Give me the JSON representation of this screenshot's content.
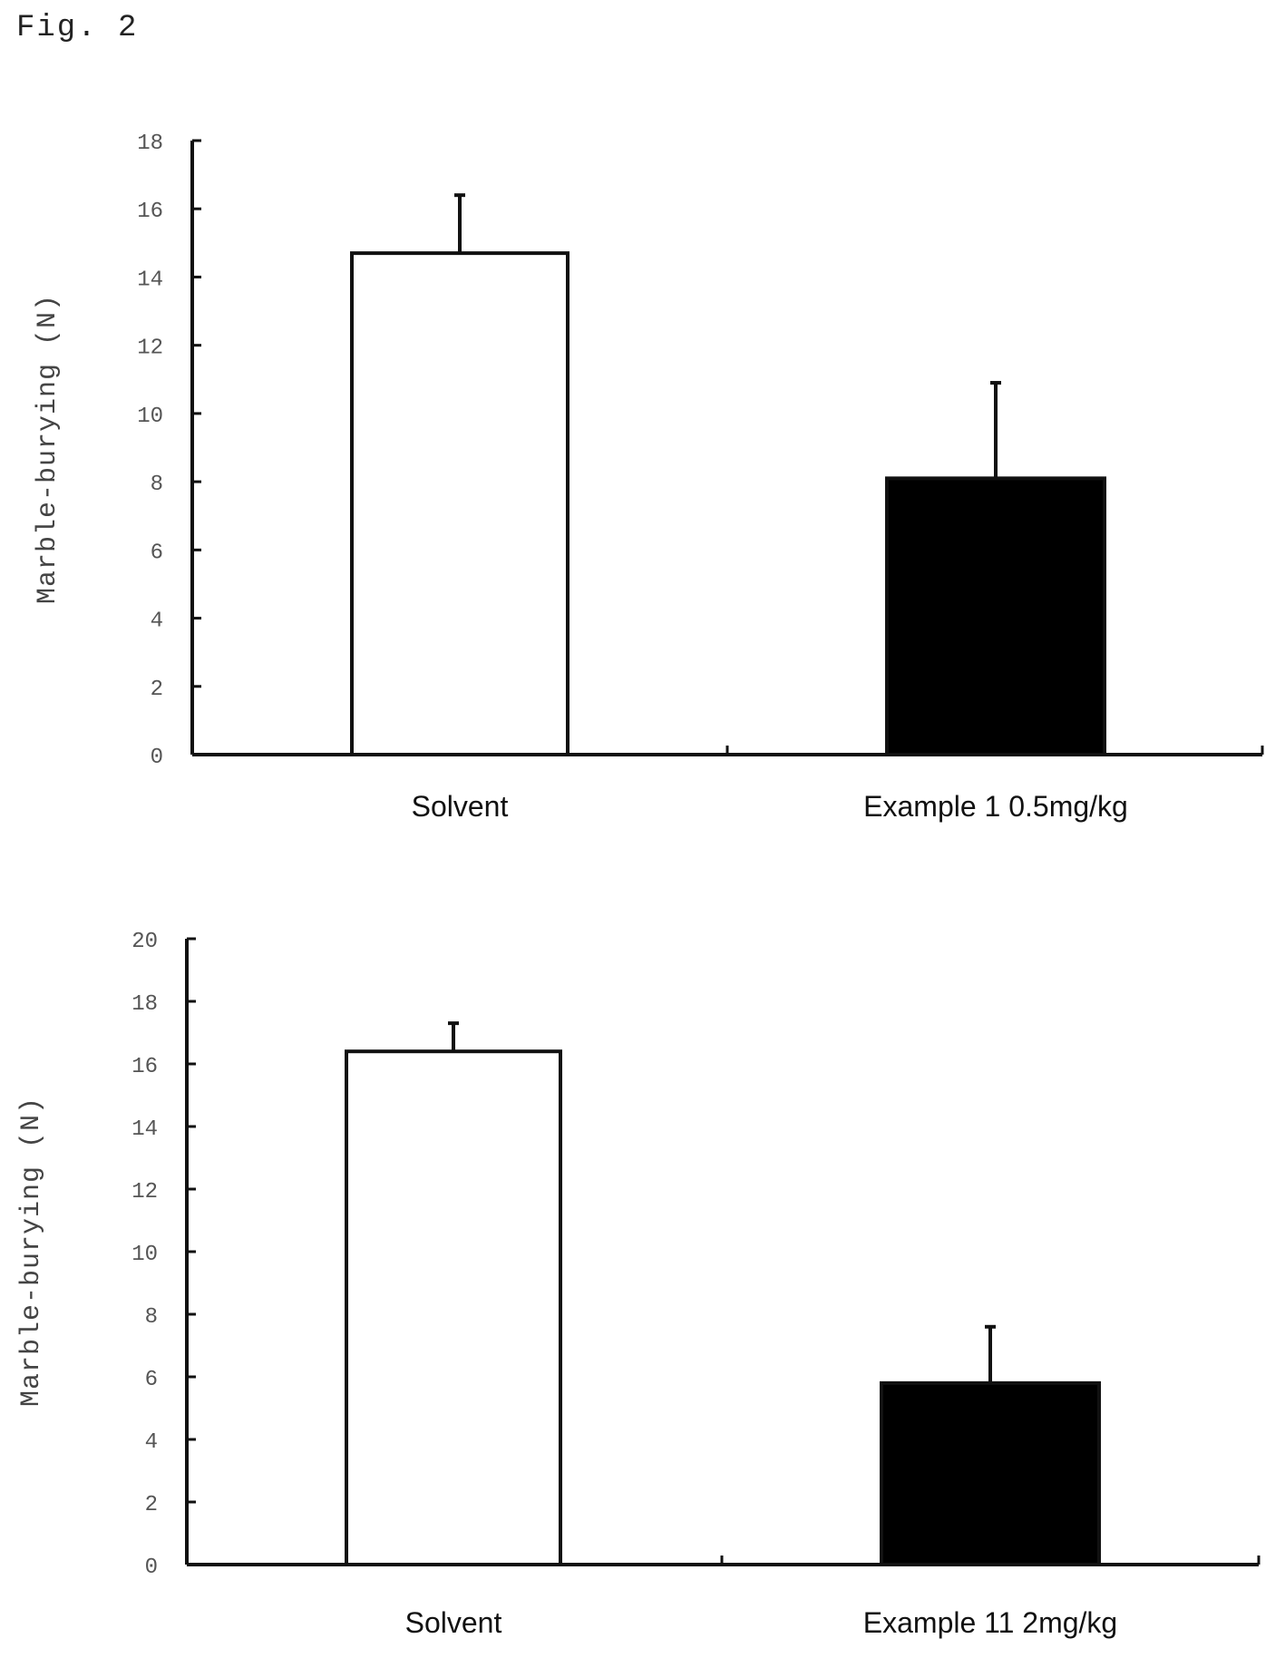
{
  "figure_title": "Fig. 2",
  "colors": {
    "axis": "#111111",
    "bar_outline": "#111111",
    "solvent_fill": "#ffffff",
    "example_fill": "#000000"
  },
  "chart_data": [
    {
      "type": "bar",
      "title": "",
      "xlabel": "",
      "ylabel": "Marble-burying (N)",
      "ylim": [
        0,
        18
      ],
      "yticks": [
        0,
        2,
        4,
        6,
        8,
        10,
        12,
        14,
        16,
        18
      ],
      "categories": [
        "Solvent",
        "Example 1  0.5mg/kg"
      ],
      "values": [
        14.7,
        8.1
      ],
      "error_upper": [
        1.7,
        2.8
      ],
      "fills": [
        "#ffffff",
        "#000000"
      ],
      "grid": false,
      "legend": "none"
    },
    {
      "type": "bar",
      "title": "",
      "xlabel": "",
      "ylabel": "Marble-burying (N)",
      "ylim": [
        0,
        20
      ],
      "yticks": [
        0,
        2,
        4,
        6,
        8,
        10,
        12,
        14,
        16,
        18,
        20
      ],
      "categories": [
        "Solvent",
        "Example 11  2mg/kg"
      ],
      "values": [
        16.4,
        5.8
      ],
      "error_upper": [
        0.9,
        1.8
      ],
      "fills": [
        "#ffffff",
        "#000000"
      ],
      "grid": false,
      "legend": "none"
    }
  ]
}
